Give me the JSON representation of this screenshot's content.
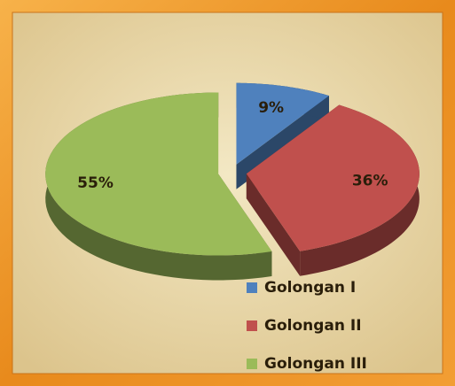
{
  "chart_data": {
    "type": "pie3d",
    "categories": [
      "Golongan I",
      "Golongan II",
      "Golongan III"
    ],
    "values": [
      9,
      36,
      55
    ],
    "value_labels": [
      "9%",
      "36%",
      "55%"
    ],
    "colors": [
      "#4f81bd",
      "#c0504d",
      "#9bbb59"
    ]
  }
}
